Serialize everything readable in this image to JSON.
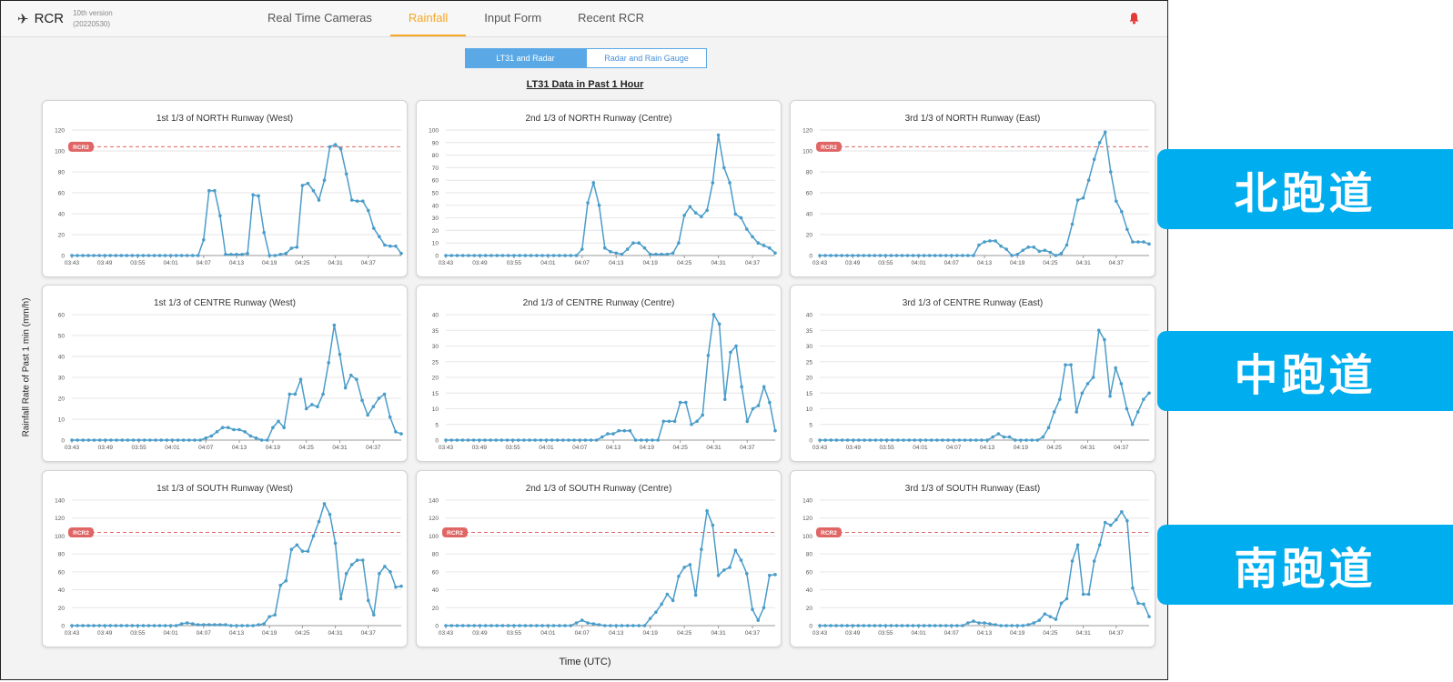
{
  "app": {
    "icon": "airplane-icon",
    "name": "RCR",
    "version_line1": "10th version",
    "version_line2": "(20220530)"
  },
  "nav": [
    {
      "label": "Real Time Cameras",
      "active": false
    },
    {
      "label": "Rainfall",
      "active": true
    },
    {
      "label": "Input Form",
      "active": false
    },
    {
      "label": "Recent RCR",
      "active": false
    }
  ],
  "toggle": {
    "option1": "LT31 and Radar",
    "option2": "Radar and Rain Gauge",
    "selected": "LT31 and Radar"
  },
  "section_title": "LT31 Data in Past 1 Hour",
  "y_axis_label": "Rainfall Rate of Past 1 min (mm/h)",
  "x_axis_label": "Time (UTC)",
  "side_labels": [
    "北跑道",
    "中跑道",
    "南跑道"
  ],
  "colors": {
    "line": "#4a9cc9",
    "threshold": "#e06666",
    "accent": "#f5a623",
    "alert": "#e53935",
    "side_label": "#00aeef"
  },
  "chart_data": [
    {
      "type": "line",
      "title": "1st 1/3 of NORTH Runway (West)",
      "threshold": {
        "label": "RCR2",
        "value": 104
      },
      "ylim": [
        0,
        120
      ],
      "yticks": [
        0,
        20,
        40,
        60,
        80,
        100,
        120
      ],
      "x_ticks": [
        "03:43",
        "03:49",
        "03:55",
        "04:01",
        "04:07",
        "04:13",
        "04:19",
        "04:25",
        "04:31",
        "04:37"
      ],
      "values": [
        0,
        0,
        0,
        0,
        0,
        0,
        0,
        0,
        0,
        0,
        0,
        0,
        0,
        0,
        0,
        0,
        0,
        0,
        0,
        0,
        0,
        0,
        0,
        0,
        15,
        62,
        62,
        38,
        1,
        1,
        1,
        1,
        2,
        58,
        57,
        22,
        0,
        0,
        1,
        2,
        7,
        8,
        67,
        69,
        62,
        53,
        72,
        104,
        106,
        102,
        78,
        53,
        52,
        52,
        43,
        26,
        18,
        10,
        9,
        9,
        2
      ]
    },
    {
      "type": "line",
      "title": "2nd 1/3 of NORTH Runway (Centre)",
      "threshold": null,
      "ylim": [
        0,
        100
      ],
      "yticks": [
        0,
        10,
        20,
        30,
        40,
        50,
        60,
        70,
        80,
        90,
        100
      ],
      "x_ticks": [
        "03:43",
        "03:49",
        "03:55",
        "04:01",
        "04:07",
        "04:13",
        "04:19",
        "04:25",
        "04:31",
        "04:37"
      ],
      "values": [
        0,
        0,
        0,
        0,
        0,
        0,
        0,
        0,
        0,
        0,
        0,
        0,
        0,
        0,
        0,
        0,
        0,
        0,
        0,
        0,
        0,
        0,
        0,
        0,
        5,
        42,
        58,
        40,
        6,
        3,
        2,
        1,
        5,
        10,
        10,
        6,
        1,
        1,
        1,
        1,
        2,
        10,
        32,
        39,
        34,
        31,
        36,
        58,
        96,
        70,
        58,
        33,
        30,
        21,
        15,
        10,
        8,
        6,
        2
      ]
    },
    {
      "type": "line",
      "title": "3rd 1/3 of NORTH Runway (East)",
      "threshold": {
        "label": "RCR2",
        "value": 104
      },
      "ylim": [
        0,
        120
      ],
      "yticks": [
        0,
        20,
        40,
        60,
        80,
        100,
        120
      ],
      "x_ticks": [
        "03:43",
        "03:49",
        "03:55",
        "04:01",
        "04:07",
        "04:13",
        "04:19",
        "04:25",
        "04:31",
        "04:37"
      ],
      "values": [
        0,
        0,
        0,
        0,
        0,
        0,
        0,
        0,
        0,
        0,
        0,
        0,
        0,
        0,
        0,
        0,
        0,
        0,
        0,
        0,
        0,
        0,
        0,
        0,
        0,
        0,
        0,
        0,
        0,
        10,
        13,
        14,
        14,
        9,
        6,
        0,
        1,
        5,
        8,
        8,
        4,
        5,
        3,
        0,
        2,
        10,
        30,
        53,
        55,
        72,
        92,
        108,
        118,
        80,
        52,
        42,
        25,
        13,
        13,
        13,
        11
      ]
    },
    {
      "type": "line",
      "title": "1st 1/3 of CENTRE Runway (West)",
      "threshold": null,
      "ylim": [
        0,
        60
      ],
      "yticks": [
        0,
        10,
        20,
        30,
        40,
        50,
        60
      ],
      "x_ticks": [
        "03:43",
        "03:49",
        "03:55",
        "04:01",
        "04:07",
        "04:13",
        "04:19",
        "04:25",
        "04:31",
        "04:37"
      ],
      "values": [
        0,
        0,
        0,
        0,
        0,
        0,
        0,
        0,
        0,
        0,
        0,
        0,
        0,
        0,
        0,
        0,
        0,
        0,
        0,
        0,
        0,
        0,
        0,
        0,
        1,
        2,
        4,
        6,
        6,
        5,
        5,
        4,
        2,
        1,
        0,
        0,
        6,
        9,
        6,
        22,
        22,
        29,
        15,
        17,
        16,
        22,
        37,
        55,
        41,
        25,
        31,
        29,
        19,
        12,
        16,
        20,
        22,
        11,
        4,
        3
      ]
    },
    {
      "type": "line",
      "title": "2nd 1/3 of CENTRE Runway (Centre)",
      "threshold": null,
      "ylim": [
        0,
        40
      ],
      "yticks": [
        0,
        5,
        10,
        15,
        20,
        25,
        30,
        35,
        40
      ],
      "x_ticks": [
        "03:43",
        "03:49",
        "03:55",
        "04:01",
        "04:07",
        "04:13",
        "04:19",
        "04:25",
        "04:31",
        "04:37"
      ],
      "values": [
        0,
        0,
        0,
        0,
        0,
        0,
        0,
        0,
        0,
        0,
        0,
        0,
        0,
        0,
        0,
        0,
        0,
        0,
        0,
        0,
        0,
        0,
        0,
        0,
        0,
        0,
        0,
        0,
        1,
        2,
        2,
        3,
        3,
        3,
        0,
        0,
        0,
        0,
        0,
        6,
        6,
        6,
        12,
        12,
        5,
        6,
        8,
        27,
        40,
        37,
        13,
        28,
        30,
        17,
        6,
        10,
        11,
        17,
        12,
        3
      ]
    },
    {
      "type": "line",
      "title": "3rd 1/3 of CENTRE Runway (East)",
      "threshold": null,
      "ylim": [
        0,
        40
      ],
      "yticks": [
        0,
        5,
        10,
        15,
        20,
        25,
        30,
        35,
        40
      ],
      "x_ticks": [
        "03:43",
        "03:49",
        "03:55",
        "04:01",
        "04:07",
        "04:13",
        "04:19",
        "04:25",
        "04:31",
        "04:37"
      ],
      "values": [
        0,
        0,
        0,
        0,
        0,
        0,
        0,
        0,
        0,
        0,
        0,
        0,
        0,
        0,
        0,
        0,
        0,
        0,
        0,
        0,
        0,
        0,
        0,
        0,
        0,
        0,
        0,
        0,
        0,
        0,
        0,
        1,
        2,
        1,
        1,
        0,
        0,
        0,
        0,
        0,
        1,
        4,
        9,
        13,
        24,
        24,
        9,
        15,
        18,
        20,
        35,
        32,
        14,
        23,
        18,
        10,
        5,
        9,
        13,
        15
      ]
    },
    {
      "type": "line",
      "title": "1st 1/3 of SOUTH Runway (West)",
      "threshold": {
        "label": "RCR2",
        "value": 104
      },
      "ylim": [
        0,
        140
      ],
      "yticks": [
        0,
        20,
        40,
        60,
        80,
        100,
        120,
        140
      ],
      "x_ticks": [
        "03:43",
        "03:49",
        "03:55",
        "04:01",
        "04:07",
        "04:13",
        "04:19",
        "04:25",
        "04:31",
        "04:37"
      ],
      "values": [
        0,
        0,
        0,
        0,
        0,
        0,
        0,
        0,
        0,
        0,
        0,
        0,
        0,
        0,
        0,
        0,
        0,
        0,
        0,
        0,
        2,
        3,
        2,
        1,
        1,
        1,
        1,
        1,
        1,
        0,
        0,
        0,
        0,
        0,
        1,
        2,
        10,
        12,
        45,
        50,
        85,
        90,
        83,
        83,
        100,
        116,
        136,
        124,
        92,
        30,
        58,
        68,
        73,
        73,
        28,
        12,
        58,
        66,
        60,
        43,
        44
      ]
    },
    {
      "type": "line",
      "title": "2nd 1/3 of SOUTH Runway (Centre)",
      "threshold": {
        "label": "RCR2",
        "value": 104
      },
      "ylim": [
        0,
        140
      ],
      "yticks": [
        0,
        20,
        40,
        60,
        80,
        100,
        120,
        140
      ],
      "x_ticks": [
        "03:43",
        "03:49",
        "03:55",
        "04:01",
        "04:07",
        "04:13",
        "04:19",
        "04:25",
        "04:31",
        "04:37"
      ],
      "values": [
        0,
        0,
        0,
        0,
        0,
        0,
        0,
        0,
        0,
        0,
        0,
        0,
        0,
        0,
        0,
        0,
        0,
        0,
        0,
        0,
        0,
        0,
        0,
        3,
        6,
        3,
        2,
        1,
        0,
        0,
        0,
        0,
        0,
        0,
        0,
        0,
        8,
        15,
        24,
        35,
        28,
        55,
        65,
        68,
        34,
        85,
        128,
        112,
        56,
        62,
        65,
        84,
        73,
        58,
        18,
        6,
        20,
        56,
        57
      ]
    },
    {
      "type": "line",
      "title": "3rd 1/3 of SOUTH Runway (East)",
      "threshold": {
        "label": "RCR2",
        "value": 104
      },
      "ylim": [
        0,
        140
      ],
      "yticks": [
        0,
        20,
        40,
        60,
        80,
        100,
        120,
        140
      ],
      "x_ticks": [
        "03:43",
        "03:49",
        "03:55",
        "04:01",
        "04:07",
        "04:13",
        "04:19",
        "04:25",
        "04:31",
        "04:37"
      ],
      "values": [
        0,
        0,
        0,
        0,
        0,
        0,
        0,
        0,
        0,
        0,
        0,
        0,
        0,
        0,
        0,
        0,
        0,
        0,
        0,
        0,
        0,
        0,
        0,
        0,
        0,
        0,
        0,
        3,
        5,
        3,
        3,
        2,
        1,
        0,
        0,
        0,
        0,
        0,
        1,
        3,
        6,
        13,
        10,
        7,
        25,
        30,
        72,
        90,
        35,
        35,
        72,
        90,
        115,
        112,
        118,
        127,
        117,
        42,
        25,
        24,
        10
      ]
    }
  ]
}
